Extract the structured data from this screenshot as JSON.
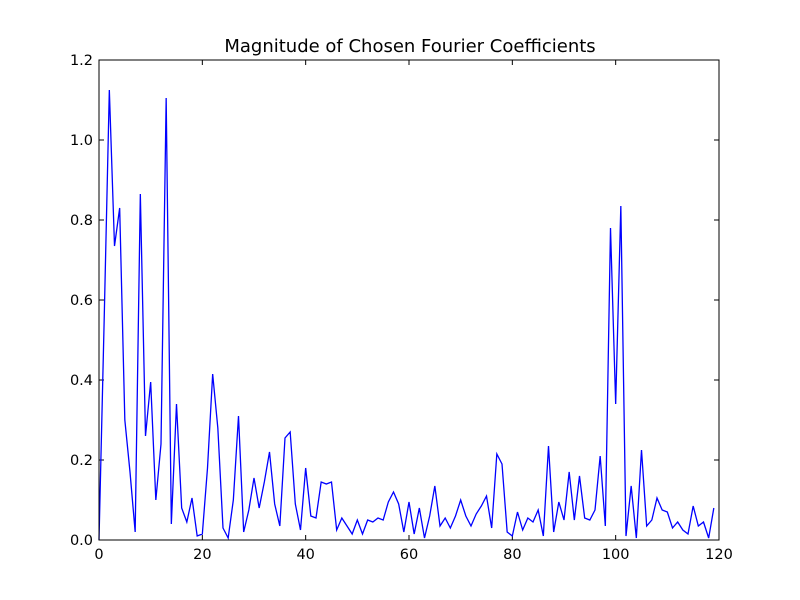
{
  "chart_data": {
    "type": "line",
    "title": "Magnitude of Chosen Fourier Coefficients",
    "xlabel": "",
    "ylabel": "",
    "xlim": [
      0,
      120
    ],
    "ylim": [
      0.0,
      1.2
    ],
    "x_ticks": [
      "0",
      "20",
      "40",
      "60",
      "80",
      "100",
      "120"
    ],
    "y_ticks": [
      "0.0",
      "0.2",
      "0.4",
      "0.6",
      "0.8",
      "1.0",
      "1.2"
    ],
    "grid": false,
    "colors": {
      "series": "#0000ff",
      "frame": "#000000",
      "background": "#ffffff"
    },
    "series": [
      {
        "x": [
          0,
          1,
          2,
          3,
          4,
          5,
          6,
          7,
          8,
          9,
          10,
          11,
          12,
          13,
          14,
          15,
          16,
          17,
          18,
          19,
          20,
          21,
          22,
          23,
          24,
          25,
          26,
          27,
          28,
          29,
          30,
          31,
          32,
          33,
          34,
          35,
          36,
          37,
          38,
          39,
          40,
          41,
          42,
          43,
          44,
          45,
          46,
          47,
          48,
          49,
          50,
          51,
          52,
          53,
          54,
          55,
          56,
          57,
          58,
          59,
          60,
          61,
          62,
          63,
          64,
          65,
          66,
          67,
          68,
          69,
          70,
          71,
          72,
          73,
          74,
          75,
          76,
          77,
          78,
          79,
          80,
          81,
          82,
          83,
          84,
          85,
          86,
          87,
          88,
          89,
          90,
          91,
          92,
          93,
          94,
          95,
          96,
          97,
          98,
          99,
          100,
          101,
          102,
          103,
          104,
          105,
          106,
          107,
          108,
          109,
          110,
          111,
          112,
          113,
          114,
          115,
          116,
          117,
          118,
          119
        ],
        "values": [
          0.0,
          0.55,
          1.125,
          0.735,
          0.83,
          0.3,
          0.17,
          0.02,
          0.865,
          0.26,
          0.395,
          0.1,
          0.24,
          1.105,
          0.04,
          0.34,
          0.08,
          0.045,
          0.105,
          0.01,
          0.015,
          0.18,
          0.415,
          0.28,
          0.03,
          0.005,
          0.1,
          0.31,
          0.02,
          0.075,
          0.155,
          0.08,
          0.145,
          0.22,
          0.09,
          0.035,
          0.255,
          0.27,
          0.09,
          0.025,
          0.18,
          0.06,
          0.055,
          0.145,
          0.14,
          0.145,
          0.025,
          0.055,
          0.035,
          0.015,
          0.05,
          0.015,
          0.05,
          0.045,
          0.055,
          0.05,
          0.095,
          0.12,
          0.09,
          0.02,
          0.095,
          0.015,
          0.08,
          0.005,
          0.06,
          0.135,
          0.035,
          0.055,
          0.03,
          0.06,
          0.1,
          0.06,
          0.035,
          0.065,
          0.085,
          0.11,
          0.03,
          0.215,
          0.19,
          0.02,
          0.01,
          0.07,
          0.025,
          0.055,
          0.045,
          0.075,
          0.01,
          0.235,
          0.02,
          0.095,
          0.05,
          0.17,
          0.05,
          0.16,
          0.055,
          0.05,
          0.075,
          0.21,
          0.035,
          0.78,
          0.34,
          0.835,
          0.01,
          0.135,
          0.005,
          0.225,
          0.035,
          0.05,
          0.105,
          0.075,
          0.07,
          0.03,
          0.045,
          0.025,
          0.015,
          0.085,
          0.035,
          0.045,
          0.005,
          0.08
        ]
      }
    ]
  }
}
